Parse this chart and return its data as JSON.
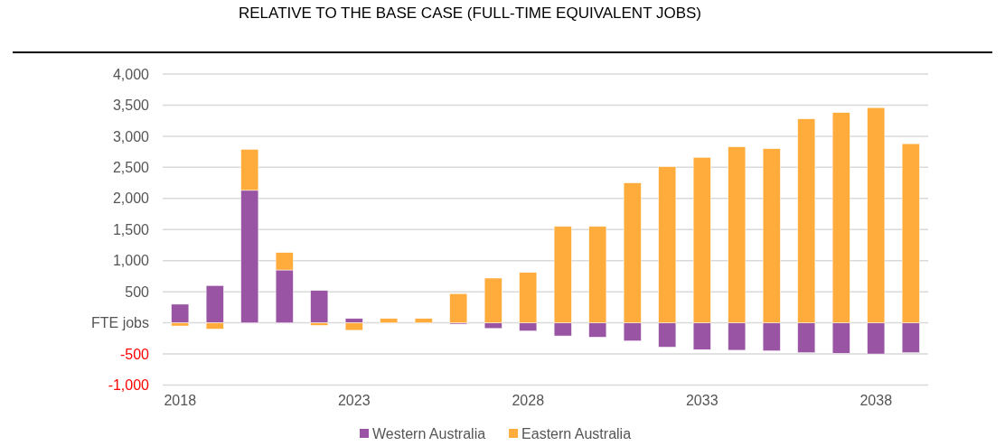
{
  "chart_data": {
    "type": "bar",
    "stacked": true,
    "title": "RELATIVE TO THE BASE CASE (FULL-TIME EQUIVALENT JOBS)",
    "categories": [
      "2018",
      null,
      null,
      null,
      null,
      "2023",
      null,
      null,
      null,
      null,
      "2028",
      null,
      null,
      null,
      null,
      "2033",
      null,
      null,
      null,
      null,
      "2038",
      null
    ],
    "series": [
      {
        "name": "Western Australia",
        "color": "#9955a4",
        "values": [
          300,
          600,
          2130,
          850,
          520,
          70,
          0,
          0,
          -20,
          -90,
          -130,
          -210,
          -230,
          -290,
          -390,
          -430,
          -440,
          -450,
          -480,
          -490,
          -500,
          -480
        ]
      },
      {
        "name": "Eastern Australia",
        "color": "#ffac3c",
        "values": [
          -50,
          -100,
          660,
          280,
          -40,
          -120,
          70,
          70,
          470,
          720,
          810,
          1550,
          1550,
          2250,
          2510,
          2660,
          2830,
          2800,
          3280,
          3380,
          3460,
          2880
        ]
      }
    ],
    "ylim": [
      -1000,
      4000
    ],
    "yticks": [
      {
        "value": -1000,
        "label": "-1,000"
      },
      {
        "value": -500,
        "label": "-500"
      },
      {
        "value": 0,
        "label": "FTE jobs"
      },
      {
        "value": 500,
        "label": "500"
      },
      {
        "value": 1000,
        "label": "1,000"
      },
      {
        "value": 1500,
        "label": "1,500"
      },
      {
        "value": 2000,
        "label": "2,000"
      },
      {
        "value": 2500,
        "label": "2,500"
      },
      {
        "value": 3000,
        "label": "3,000"
      },
      {
        "value": 3500,
        "label": "3,500"
      },
      {
        "value": 4000,
        "label": "4,000"
      }
    ],
    "grid": "y",
    "legend": "bottom"
  }
}
